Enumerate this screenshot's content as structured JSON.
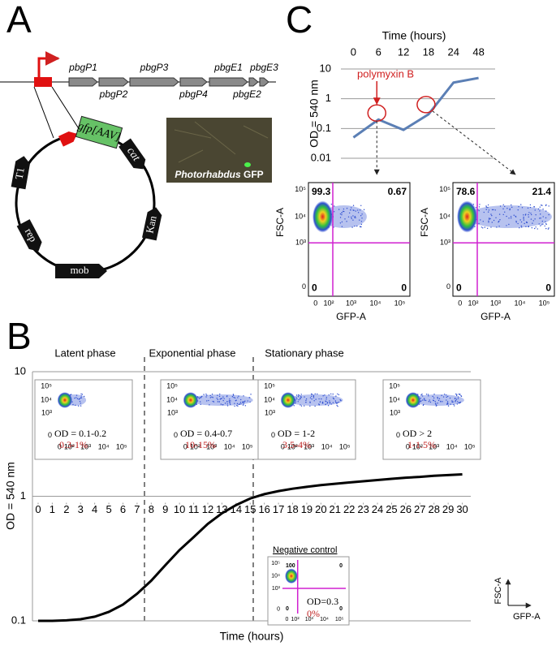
{
  "panel_a": {
    "label": "A",
    "genes": [
      "pbgP1",
      "pbgP2",
      "pbgP3",
      "pbgP4",
      "pbgE1",
      "pbgE2",
      "pbgE3"
    ],
    "plasmid": {
      "gfp": "gfp[AAV]",
      "cat": "cat",
      "kan": "Kan",
      "mob": "mob",
      "rep": "rep",
      "t1": "T1"
    },
    "image_caption": {
      "italic": "Photorhabdus",
      "plain": "GFP"
    }
  },
  "panel_c": {
    "label": "C",
    "annotation": "polymyxin B",
    "flow_x_label": "GFP-A",
    "flow_y_label": "FSC-A",
    "flow_x_ticks": [
      "0",
      "10²",
      "10³",
      "10⁴",
      "10⁵"
    ],
    "flow_y_ticks": [
      "10⁵",
      "10⁴",
      "10³",
      "0"
    ],
    "flow_plots": [
      {
        "quadrants": [
          99.3,
          0.67,
          0,
          0
        ]
      },
      {
        "quadrants": [
          78.6,
          21.4,
          0,
          0
        ]
      }
    ]
  },
  "panel_b": {
    "label": "B",
    "phases": [
      "Latent phase",
      "Exponential phase",
      "Stationary phase"
    ],
    "flow_x_ticks": [
      "0",
      "10²",
      "10³",
      "10⁴",
      "10⁵"
    ],
    "flow_y_ticks": [
      "10⁵",
      "10⁴",
      "10³",
      "0"
    ],
    "insets": [
      {
        "od": "OD = 0.1-0.2",
        "percent": "0.3-1%"
      },
      {
        "od": "OD = 0.4-0.7",
        "percent": "10-15%"
      },
      {
        "od": "OD = 1-2",
        "percent": "3.5-4%"
      },
      {
        "od": "OD > 2",
        "percent": "1-1.5%"
      }
    ],
    "negative_control": {
      "title": "Negative control",
      "od": "OD=0.3",
      "percent": "0%",
      "quadrants": [
        100,
        0,
        0,
        0
      ]
    },
    "axis_key": {
      "y": "FSC-A",
      "x": "GFP-A"
    }
  },
  "chart_data": [
    {
      "type": "line",
      "x_label": "Time (hours)",
      "y_label": "OD = 540 nm",
      "categories": [
        "0",
        "6",
        "12",
        "18",
        "24",
        "48"
      ],
      "values": [
        0.05,
        0.2,
        0.09,
        0.3,
        3.5,
        5
      ],
      "ylim": [
        0.01,
        10
      ],
      "yticks": [
        0.01,
        0.1,
        1,
        10
      ],
      "log_y": true,
      "grid": true,
      "color": "#5b7fb5"
    },
    {
      "type": "line",
      "x_label": "Time (hours)",
      "y_label": "OD = 540 nm",
      "x": [
        0,
        1,
        2,
        3,
        4,
        5,
        6,
        7,
        8,
        9,
        10,
        11,
        12,
        13,
        14,
        15,
        16,
        17,
        18,
        19,
        20,
        21,
        22,
        23,
        24,
        25,
        26,
        27,
        28,
        29,
        30
      ],
      "values": [
        0.1,
        0.1,
        0.101,
        0.103,
        0.108,
        0.118,
        0.135,
        0.165,
        0.21,
        0.28,
        0.37,
        0.47,
        0.6,
        0.73,
        0.85,
        0.96,
        1.04,
        1.1,
        1.15,
        1.19,
        1.23,
        1.26,
        1.29,
        1.32,
        1.35,
        1.38,
        1.41,
        1.43,
        1.46,
        1.48,
        1.5
      ],
      "xlim": [
        -0.4,
        30.6
      ],
      "xticks": [
        0,
        1,
        2,
        3,
        4,
        5,
        6,
        7,
        8,
        9,
        10,
        11,
        12,
        13,
        14,
        15,
        16,
        17,
        18,
        19,
        20,
        21,
        22,
        23,
        24,
        25,
        26,
        27,
        28,
        29,
        30
      ],
      "ylim": [
        0.1,
        10
      ],
      "yticks": [
        0.1,
        1,
        10
      ],
      "log_y": true,
      "grid": true,
      "color": "#000000"
    }
  ]
}
